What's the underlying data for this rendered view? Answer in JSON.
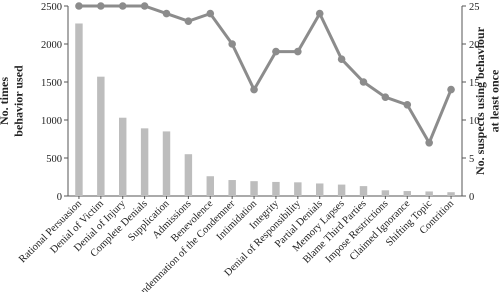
{
  "chart_data": {
    "type": "bar-line",
    "y_label": "No. times behavior used",
    "y2_label": "No. suspects using behaviour at least once",
    "categories": [
      "Rational Persuasion",
      "Denial of Victim",
      "Denial of Injury",
      "Complete Denials",
      "Supplication",
      "Admissions",
      "Benevolence",
      "Condemnation of the Condemner",
      "Intimidation",
      "Integrity",
      "Denial of Responsibility",
      "Partial Denials",
      "Memory Lapses",
      "Blame Third Parties",
      "Impose Restrictions",
      "Claimed Ignorance",
      "Shifting Topic",
      "Contrition"
    ],
    "series": [
      {
        "type": "bar",
        "axis": "y",
        "color": "#bdbdbd",
        "values": [
          2270,
          1570,
          1030,
          890,
          850,
          550,
          260,
          210,
          195,
          185,
          180,
          165,
          150,
          130,
          75,
          65,
          60,
          50
        ]
      },
      {
        "type": "line",
        "axis": "y2",
        "color": "#8c8c8c",
        "values": [
          25,
          25,
          25,
          25,
          24,
          23,
          24,
          20,
          14,
          19,
          19,
          24,
          18,
          15,
          13,
          12,
          7,
          14
        ]
      }
    ],
    "ylim": [
      0,
      2500
    ],
    "yticks": [
      0,
      500,
      1000,
      1500,
      2000,
      2500
    ],
    "y2lim": [
      0,
      25
    ],
    "y2ticks": [
      0,
      5,
      10,
      15,
      20,
      25
    ]
  }
}
